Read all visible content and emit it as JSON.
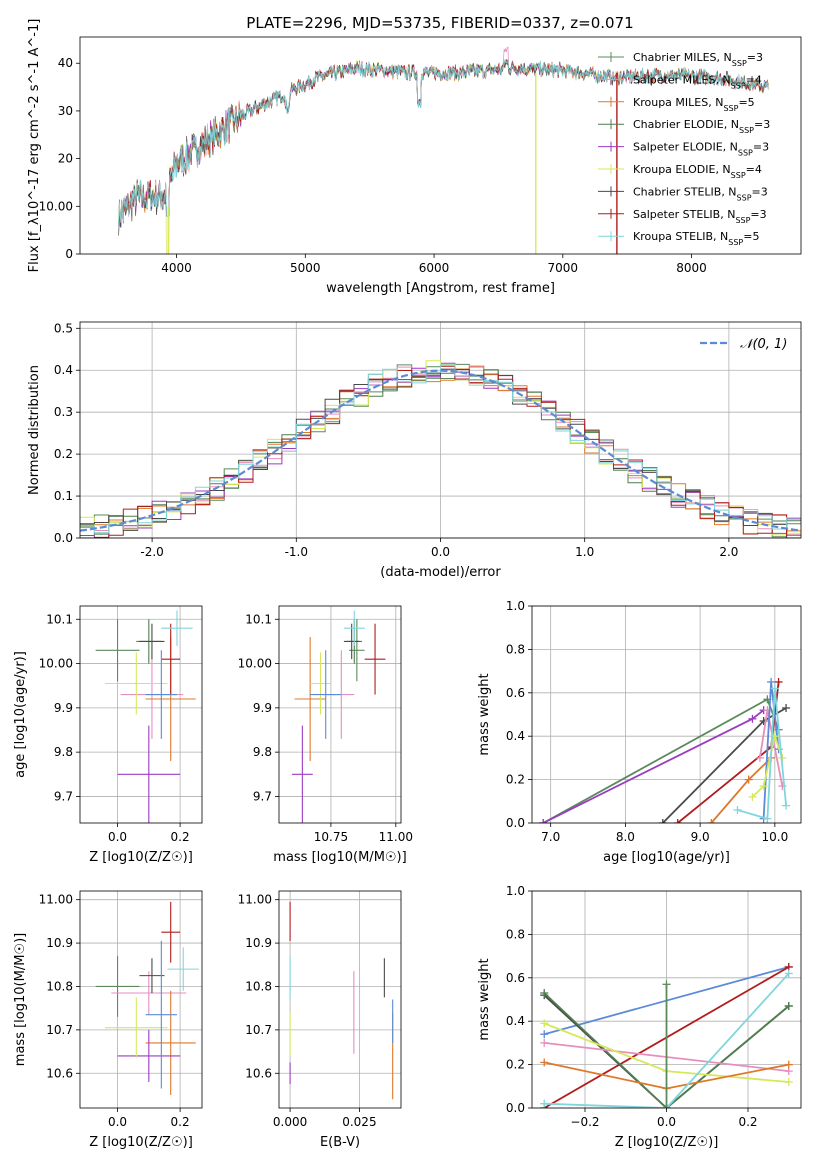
{
  "figure_title": "PLATE=2296, MJD=53735, FIBERID=0337, z=0.071",
  "models": [
    {
      "name": "Chabrier MILES",
      "nssp": "3",
      "color": "#5b8a5b"
    },
    {
      "name": "Salpeter MILES",
      "nssp": "4",
      "color": "#e58fbf"
    },
    {
      "name": "Kroupa MILES",
      "nssp": "5",
      "color": "#e0782a"
    },
    {
      "name": "Chabrier ELODIE",
      "nssp": "3",
      "color": "#4f7f4f"
    },
    {
      "name": "Salpeter ELODIE",
      "nssp": "3",
      "color": "#9b3cc0"
    },
    {
      "name": "Kroupa ELODIE",
      "nssp": "4",
      "color": "#d6e85a"
    },
    {
      "name": "Chabrier STELIB",
      "nssp": "3",
      "color": "#4a4a4a"
    },
    {
      "name": "Salpeter STELIB",
      "nssp": "3",
      "color": "#b21c1c"
    },
    {
      "name": "Kroupa STELIB",
      "nssp": "5",
      "color": "#7fd6dc"
    }
  ],
  "extra_colors": {
    "blue": "#5b8bd6",
    "gauss": "#5b8bd6"
  },
  "chart_data": [
    {
      "id": "spectrum",
      "type": "line",
      "xlabel": "wavelength [Angstrom, rest frame]",
      "ylabel": "Flux [f_λ10^-17 erg cm^-2 s^-1 A^-1]",
      "xlim": [
        3250,
        8850
      ],
      "ylim": [
        0,
        45.5
      ],
      "xticks": [
        4000,
        5000,
        6000,
        7000,
        8000
      ],
      "yticks": [
        0,
        10,
        20,
        30,
        40
      ],
      "continuum": [
        [
          3550,
          8
        ],
        [
          3700,
          12
        ],
        [
          3900,
          12
        ],
        [
          4000,
          19
        ],
        [
          4300,
          25
        ],
        [
          4500,
          29
        ],
        [
          4800,
          33
        ],
        [
          5100,
          37
        ],
        [
          5400,
          39
        ],
        [
          5800,
          38
        ],
        [
          6200,
          38
        ],
        [
          6600,
          39
        ],
        [
          7000,
          38.5
        ],
        [
          7400,
          37
        ],
        [
          7800,
          37.5
        ],
        [
          8200,
          37
        ],
        [
          8600,
          35
        ]
      ],
      "drops": [
        [
          3930,
          0
        ],
        [
          6790,
          0
        ],
        [
          7420,
          0
        ],
        [
          5890,
          31
        ],
        [
          5400,
          33
        ]
      ],
      "legend": "top-right"
    },
    {
      "id": "residuals",
      "type": "histogram",
      "xlabel": "(data-model)/error",
      "ylabel": "Normed distribution",
      "xlim": [
        -2.5,
        2.5
      ],
      "ylim": [
        0,
        0.515
      ],
      "xticks": [
        -2,
        -1,
        0,
        1,
        2
      ],
      "yticks": [
        0.0,
        0.1,
        0.2,
        0.3,
        0.4,
        0.5
      ],
      "legend_label": "𝒩(0, 1)",
      "bin_width": 0.1,
      "grid": true
    },
    {
      "id": "age_vs_Z",
      "type": "errorbar",
      "xlabel": "Z [log10(Z/Z☉)]",
      "ylabel": "age  [log10(age/yr)]",
      "xlim": [
        -0.12,
        0.27
      ],
      "ylim": [
        9.64,
        10.13
      ],
      "xticks": [
        0.0,
        0.2
      ],
      "yticks": [
        9.7,
        9.8,
        9.9,
        10.0,
        10.1
      ],
      "points": [
        {
          "m": 0,
          "x": 0.0,
          "y": 10.03,
          "xe": 0.07,
          "ye": 0.07
        },
        {
          "m": 1,
          "x": 0.11,
          "y": 9.93,
          "xe": 0.1,
          "ye": 0.1
        },
        {
          "m": 2,
          "x": 0.17,
          "y": 9.92,
          "xe": 0.08,
          "ye": 0.14
        },
        {
          "m": 3,
          "x": 0.1,
          "y": 10.05,
          "xe": 0.04,
          "ye": 0.05
        },
        {
          "m": 4,
          "x": 0.1,
          "y": 9.75,
          "xe": 0.1,
          "ye": 0.11
        },
        {
          "m": 5,
          "x": 0.06,
          "y": 9.955,
          "xe": 0.1,
          "ye": 0.07
        },
        {
          "m": 6,
          "x": 0.11,
          "y": 10.05,
          "xe": 0.04,
          "ye": 0.04
        },
        {
          "m": 7,
          "x": 0.17,
          "y": 10.01,
          "xe": 0.03,
          "ye": 0.08
        },
        {
          "m": 8,
          "x": 0.19,
          "y": 10.08,
          "xe": 0.05,
          "ye": 0.04
        },
        {
          "m": 9,
          "x": 0.14,
          "y": 9.93,
          "xe": 0.05,
          "ye": 0.1
        }
      ]
    },
    {
      "id": "age_vs_mass",
      "type": "errorbar",
      "xlabel": "mass [log10(M/M☉)]",
      "ylabel": "",
      "xlim": [
        10.55,
        11.02
      ],
      "ylim": [
        9.64,
        10.13
      ],
      "xticks": [
        10.75,
        11.0
      ],
      "yticks": [
        9.7,
        9.8,
        9.9,
        10.0,
        10.1
      ],
      "points": [
        {
          "m": 0,
          "x": 10.85,
          "y": 10.03,
          "xe": 0.03,
          "ye": 0.07
        },
        {
          "m": 1,
          "x": 10.79,
          "y": 9.93,
          "xe": 0.05,
          "ye": 0.1
        },
        {
          "m": 2,
          "x": 10.67,
          "y": 9.92,
          "xe": 0.06,
          "ye": 0.14
        },
        {
          "m": 3,
          "x": 10.84,
          "y": 10.05,
          "xe": 0.03,
          "ye": 0.05
        },
        {
          "m": 4,
          "x": 10.64,
          "y": 9.75,
          "xe": 0.04,
          "ye": 0.11
        },
        {
          "m": 5,
          "x": 10.71,
          "y": 9.955,
          "xe": 0.04,
          "ye": 0.07
        },
        {
          "m": 6,
          "x": 10.83,
          "y": 10.05,
          "xe": 0.03,
          "ye": 0.04
        },
        {
          "m": 7,
          "x": 10.92,
          "y": 10.01,
          "xe": 0.04,
          "ye": 0.08
        },
        {
          "m": 8,
          "x": 10.84,
          "y": 10.08,
          "xe": 0.04,
          "ye": 0.04
        },
        {
          "m": 9,
          "x": 10.73,
          "y": 9.93,
          "xe": 0.06,
          "ye": 0.1
        }
      ]
    },
    {
      "id": "weight_vs_age",
      "type": "line",
      "xlabel": "age  [log10(age/yr)]",
      "ylabel": "mass weight",
      "xlim": [
        6.75,
        10.35
      ],
      "ylim": [
        0,
        1.0
      ],
      "xticks": [
        7,
        8,
        9,
        10
      ],
      "yticks": [
        0.0,
        0.2,
        0.4,
        0.6,
        0.8,
        1.0
      ],
      "series": [
        {
          "m": 0,
          "pts": [
            [
              6.9,
              0.0
            ],
            [
              9.9,
              0.57
            ],
            [
              10.05,
              0.43
            ]
          ]
        },
        {
          "m": 4,
          "pts": [
            [
              6.9,
              0.0
            ],
            [
              9.7,
              0.48
            ],
            [
              9.85,
              0.52
            ]
          ]
        },
        {
          "m": 6,
          "pts": [
            [
              8.5,
              0.0
            ],
            [
              9.85,
              0.47
            ],
            [
              10.15,
              0.53
            ]
          ]
        },
        {
          "m": 7,
          "pts": [
            [
              8.7,
              0.0
            ],
            [
              9.95,
              0.35
            ],
            [
              10.05,
              0.65
            ]
          ]
        },
        {
          "m": 2,
          "pts": [
            [
              9.15,
              0.0
            ],
            [
              9.65,
              0.2
            ],
            [
              9.95,
              0.3
            ]
          ]
        },
        {
          "m": 1,
          "pts": [
            [
              9.8,
              0.3
            ],
            [
              9.9,
              0.52
            ],
            [
              10.1,
              0.17
            ]
          ]
        },
        {
          "m": 9,
          "pts": [
            [
              9.85,
              0.02
            ],
            [
              9.95,
              0.65
            ],
            [
              10.05,
              0.34
            ]
          ]
        },
        {
          "m": 5,
          "pts": [
            [
              9.7,
              0.12
            ],
            [
              9.85,
              0.17
            ],
            [
              10.0,
              0.4
            ],
            [
              10.1,
              0.3
            ]
          ]
        },
        {
          "m": 8,
          "pts": [
            [
              9.5,
              0.06
            ],
            [
              9.9,
              0.02
            ],
            [
              10.0,
              0.62
            ],
            [
              10.15,
              0.08
            ]
          ]
        }
      ]
    },
    {
      "id": "mass_vs_Z",
      "type": "errorbar",
      "xlabel": "Z [log10(Z/Z☉)]",
      "ylabel": "mass [log10(M/M☉)]",
      "xlim": [
        -0.12,
        0.27
      ],
      "ylim": [
        10.52,
        11.02
      ],
      "xticks": [
        0.0,
        0.2
      ],
      "yticks": [
        10.6,
        10.7,
        10.8,
        10.9,
        11.0
      ],
      "points": [
        {
          "m": 0,
          "x": 0.0,
          "y": 10.8,
          "xe": 0.07,
          "ye": 0.07
        },
        {
          "m": 1,
          "x": 0.1,
          "y": 10.785,
          "xe": 0.12,
          "ye": 0.05
        },
        {
          "m": 2,
          "x": 0.17,
          "y": 10.67,
          "xe": 0.08,
          "ye": 0.12
        },
        {
          "m": 4,
          "x": 0.1,
          "y": 10.64,
          "xe": 0.1,
          "ye": 0.06
        },
        {
          "m": 5,
          "x": 0.06,
          "y": 10.705,
          "xe": 0.1,
          "ye": 0.07
        },
        {
          "m": 6,
          "x": 0.11,
          "y": 10.825,
          "xe": 0.04,
          "ye": 0.04
        },
        {
          "m": 7,
          "x": 0.17,
          "y": 10.925,
          "xe": 0.03,
          "ye": 0.07
        },
        {
          "m": 8,
          "x": 0.21,
          "y": 10.84,
          "xe": 0.05,
          "ye": 0.05
        },
        {
          "m": 9,
          "x": 0.14,
          "y": 10.735,
          "xe": 0.05,
          "ye": 0.17
        }
      ]
    },
    {
      "id": "mass_vs_ebv",
      "type": "errorbar",
      "xlabel": "E(B-V)",
      "ylabel": "",
      "xlim": [
        -0.004,
        0.04
      ],
      "ylim": [
        10.52,
        11.02
      ],
      "xticks": [
        0.0,
        0.025
      ],
      "yticks": [
        10.6,
        10.7,
        10.8,
        10.9,
        11.0
      ],
      "points": [
        {
          "m": 7,
          "x": 0.0,
          "y": 10.95,
          "xe": 0.0,
          "ye": 0.045
        },
        {
          "m": 8,
          "x": 0.0,
          "y": 10.82,
          "xe": 0.0,
          "ye": 0.05
        },
        {
          "m": 5,
          "x": 0.0,
          "y": 10.69,
          "xe": 0.0,
          "ye": 0.05
        },
        {
          "m": 4,
          "x": 0.0,
          "y": 10.6,
          "xe": 0.0,
          "ye": 0.025
        },
        {
          "m": 1,
          "x": 0.023,
          "y": 10.74,
          "xe": 0.0,
          "ye": 0.095
        },
        {
          "m": 6,
          "x": 0.034,
          "y": 10.82,
          "xe": 0.0,
          "ye": 0.045
        },
        {
          "m": 2,
          "x": 0.037,
          "y": 10.64,
          "xe": 0.0,
          "ye": 0.1
        },
        {
          "m": 9,
          "x": 0.037,
          "y": 10.72,
          "xe": 0.0,
          "ye": 0.05
        }
      ]
    },
    {
      "id": "weight_vs_Z",
      "type": "line",
      "xlabel": "Z [log10(Z/Z☉)]",
      "ylabel": "mass weight",
      "xlim": [
        -0.33,
        0.33
      ],
      "ylim": [
        0,
        1.0
      ],
      "xticks": [
        -0.2,
        0.0,
        0.2
      ],
      "yticks": [
        0.0,
        0.2,
        0.4,
        0.6,
        0.8,
        1.0
      ],
      "series": [
        {
          "m": 9,
          "pts": [
            [
              -0.3,
              0.34
            ],
            [
              0.3,
              0.65
            ]
          ]
        },
        {
          "m": 7,
          "pts": [
            [
              -0.3,
              0.0
            ],
            [
              0.3,
              0.65
            ]
          ]
        },
        {
          "m": 6,
          "pts": [
            [
              -0.3,
              0.52
            ],
            [
              0.0,
              0.0
            ],
            [
              0.3,
              0.47
            ]
          ]
        },
        {
          "m": 3,
          "pts": [
            [
              -0.3,
              0.53
            ],
            [
              0.0,
              0.0
            ],
            [
              0.3,
              0.47
            ]
          ]
        },
        {
          "m": 1,
          "pts": [
            [
              -0.3,
              0.3
            ],
            [
              0.3,
              0.17
            ]
          ]
        },
        {
          "m": 5,
          "pts": [
            [
              -0.3,
              0.39
            ],
            [
              0.0,
              0.17
            ],
            [
              0.3,
              0.12
            ]
          ]
        },
        {
          "m": 2,
          "pts": [
            [
              -0.3,
              0.21
            ],
            [
              0.0,
              0.09
            ],
            [
              0.3,
              0.2
            ]
          ]
        },
        {
          "m": 8,
          "pts": [
            [
              -0.3,
              0.02
            ],
            [
              0.0,
              0.0
            ],
            [
              0.3,
              0.62
            ]
          ]
        },
        {
          "m": 0,
          "pts": [
            [
              0.0,
              0.57
            ],
            [
              0.0,
              0.0
            ]
          ]
        }
      ]
    }
  ]
}
